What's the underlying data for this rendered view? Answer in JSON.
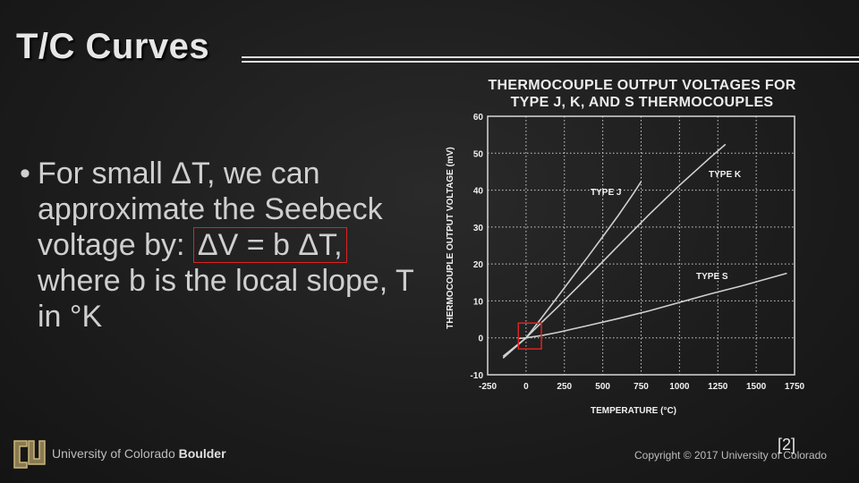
{
  "slide": {
    "title": "T/C Curves",
    "bullet_dot": "•",
    "bullet_part1": "For small ΔT, we can approximate the Seebeck voltage by:",
    "equation": "ΔV = b ΔT,",
    "bullet_part2": "where b is the local slope, T in °K"
  },
  "footer": {
    "university_plain": "University of Colorado",
    "university_bold": "Boulder",
    "copyright": "Copyright © 2017 University of Colorado",
    "reference": "[2]"
  },
  "colors": {
    "highlight_box": "#dd2222",
    "curve": "#d0d0d0",
    "grid": "#cfcfcf",
    "background": "#1f1f1f"
  },
  "chart_data": {
    "type": "line",
    "title_line1": "THERMOCOUPLE OUTPUT VOLTAGES FOR",
    "title_line2": "TYPE J, K, AND S THERMOCOUPLES",
    "xlabel": "TEMPERATURE (°C)",
    "ylabel": "THERMOCOUPLE OUTPUT VOLTAGE (mV)",
    "xlim": [
      -250,
      1750
    ],
    "ylim": [
      -10,
      60
    ],
    "xticks": [
      -250,
      0,
      250,
      500,
      750,
      1000,
      1250,
      1500,
      1750
    ],
    "yticks": [
      -10,
      0,
      10,
      20,
      30,
      40,
      50,
      60
    ],
    "grid": true,
    "series": [
      {
        "name": "TYPE J",
        "x": [
          -150,
          0,
          100,
          200,
          300,
          400,
          500,
          600,
          700,
          750
        ],
        "y": [
          -5.5,
          0,
          5.3,
          10.8,
          16.3,
          21.8,
          27.4,
          33.1,
          39.1,
          42.3
        ]
      },
      {
        "name": "TYPE K",
        "x": [
          -150,
          0,
          100,
          200,
          400,
          600,
          800,
          1000,
          1200,
          1300
        ],
        "y": [
          -5.0,
          0,
          4.1,
          8.1,
          16.4,
          24.9,
          33.3,
          41.3,
          48.8,
          52.4
        ]
      },
      {
        "name": "TYPE S",
        "x": [
          -50,
          0,
          100,
          200,
          400,
          600,
          800,
          1000,
          1200,
          1400,
          1700
        ],
        "y": [
          -0.2,
          0,
          0.6,
          1.4,
          3.3,
          5.2,
          7.3,
          9.6,
          11.9,
          14.0,
          17.5
        ]
      }
    ],
    "annotations": [
      "TYPE J",
      "TYPE K",
      "TYPE S"
    ],
    "highlight_box": {
      "x": [
        -50,
        100
      ],
      "y": [
        -3,
        4
      ]
    }
  }
}
